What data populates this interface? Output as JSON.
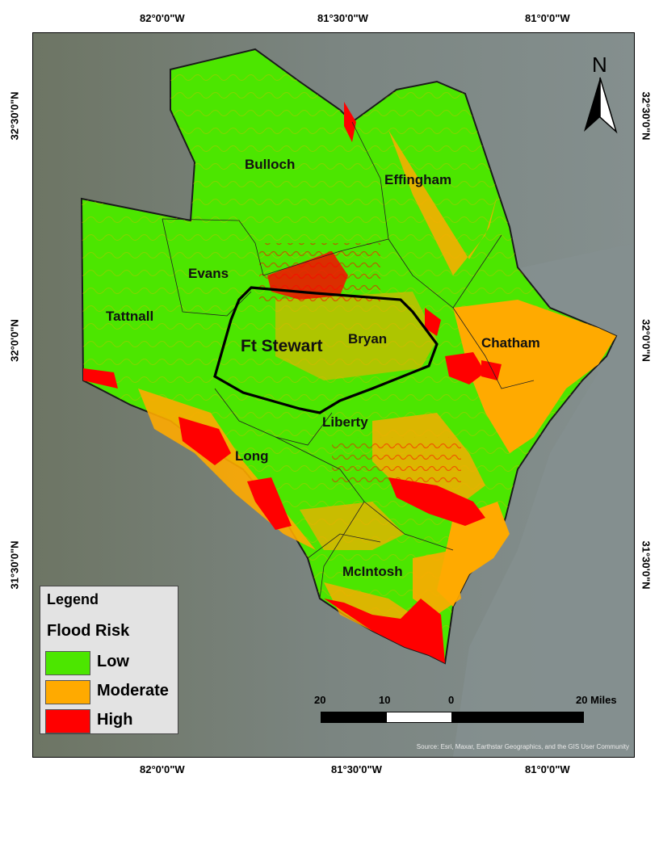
{
  "coords": {
    "top": [
      "82°0'0\"W",
      "81°30'0\"W",
      "81°0'0\"W"
    ],
    "bottom": [
      "82°0'0\"W",
      "81°30'0\"W",
      "81°0'0\"W"
    ],
    "left": [
      "32°30'0\"N",
      "32°0'0\"N",
      "31°30'0\"N"
    ],
    "right": [
      "32°30'0\"N",
      "32°0'0\"N",
      "31°30'0\"N"
    ]
  },
  "north_arrow": {
    "label": "N"
  },
  "counties": [
    {
      "name": "Bulloch"
    },
    {
      "name": "Effingham"
    },
    {
      "name": "Evans"
    },
    {
      "name": "Tattnall"
    },
    {
      "name": "Bryan"
    },
    {
      "name": "Chatham"
    },
    {
      "name": "Liberty"
    },
    {
      "name": "Long"
    },
    {
      "name": "McIntosh"
    }
  ],
  "installation": {
    "name": "Ft Stewart"
  },
  "legend": {
    "title": "Legend",
    "subtitle": "Flood Risk",
    "items": [
      {
        "label": "Low",
        "color": "#4ce600"
      },
      {
        "label": "Moderate",
        "color": "#ffaa00"
      },
      {
        "label": "High",
        "color": "#ff0000"
      }
    ]
  },
  "scale": {
    "labels": [
      "20",
      "10",
      "0",
      "20 Miles"
    ]
  },
  "source": "Source: Esri, Maxar, Earthstar Geographics, and the GIS User Community",
  "colors": {
    "ocean": "#7f8a88",
    "land_imagery": "#6f7560",
    "boundary": "#000000"
  }
}
